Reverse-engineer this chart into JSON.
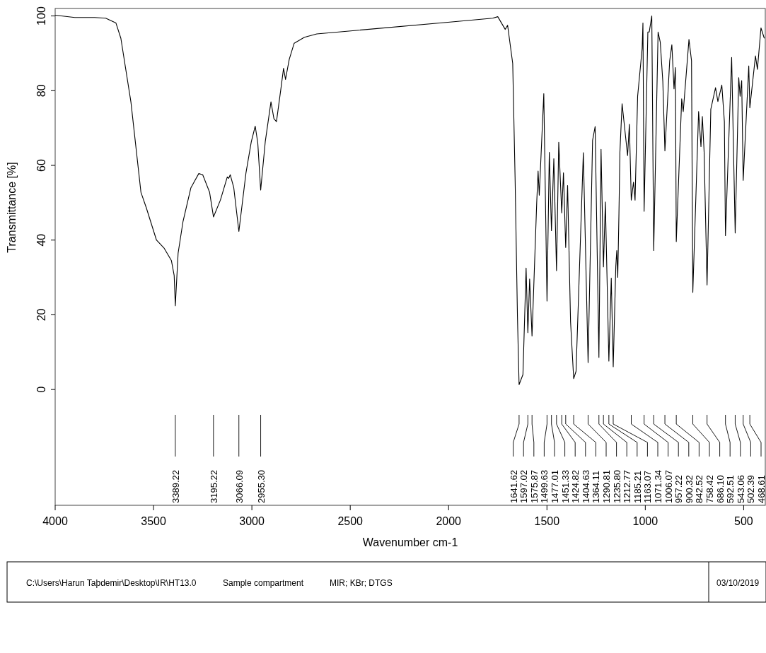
{
  "chart_data": {
    "type": "line",
    "xlabel": "Wavenumber cm-1",
    "ylabel": "Transmittance [%]",
    "xlim": [
      4000,
      390
    ],
    "xticks": [
      4000,
      3500,
      3000,
      2500,
      2000,
      1500,
      1000,
      500
    ],
    "ylim": [
      -31,
      102
    ],
    "yticks": [
      0,
      20,
      40,
      60,
      80,
      100
    ],
    "series": [
      {
        "color": "#000000",
        "x": [
          4000,
          3900,
          3800,
          3743,
          3691,
          3666,
          3615,
          3564,
          3537,
          3485,
          3447,
          3409,
          3395,
          3389.22,
          3375,
          3350,
          3310,
          3270,
          3250,
          3215,
          3195.22,
          3160,
          3125,
          3118,
          3110,
          3092,
          3066.09,
          3030,
          3003,
          2983,
          2970,
          2955.3,
          2932,
          2903,
          2888,
          2875,
          2852,
          2839,
          2829,
          2810,
          2785,
          2733,
          2670,
          1983,
          1776,
          1750,
          1712,
          1700,
          1674,
          1662,
          1650,
          1641.62,
          1622,
          1606,
          1597.02,
          1588,
          1575.87,
          1552,
          1545,
          1539,
          1516,
          1499.63,
          1488,
          1477.01,
          1465,
          1451.33,
          1440,
          1424.82,
          1416,
          1404.63,
          1395,
          1380,
          1364.11,
          1352,
          1315,
          1290.81,
          1268,
          1255,
          1235.8,
          1225,
          1212.77,
          1203,
          1185.21,
          1173,
          1163.07,
          1150,
          1145,
          1140,
          1134,
          1129,
          1118,
          1090,
          1081,
          1071.34,
          1060,
          1052,
          1039,
          1016,
          1012,
          1006.07,
          987,
          980,
          967,
          957.22,
          935,
          924,
          911,
          900.32,
          876,
          865,
          854,
          847,
          842.52,
          815,
          807,
          778,
          765,
          758.42,
          729,
          717,
          710,
          701,
          686.1,
          667,
          643,
          631,
          611,
          598,
          592.51,
          561,
          543.06,
          525,
          518,
          510,
          502.39,
          474,
          468.61,
          440,
          430,
          412,
          395
        ],
        "values": [
          100.2,
          99.6,
          99.6,
          99.4,
          98.1,
          94,
          77,
          52.8,
          48.7,
          40,
          37.9,
          34.5,
          30.5,
          22.4,
          36.5,
          45,
          54,
          57.8,
          57.5,
          52.8,
          46.2,
          50.7,
          56.9,
          56.5,
          57.5,
          54,
          42.3,
          58,
          66.3,
          70.5,
          66,
          53.4,
          66.3,
          77,
          72.5,
          71.7,
          80.7,
          86,
          83,
          88.4,
          92.7,
          94.3,
          95.2,
          98.4,
          99.4,
          99.8,
          96.4,
          97.5,
          87.3,
          56.8,
          19.7,
          1.3,
          4,
          32.5,
          15.2,
          29.6,
          14.3,
          50,
          58.5,
          52,
          79.2,
          23.7,
          63.5,
          42.5,
          61.8,
          31.8,
          66.2,
          47.3,
          58,
          38,
          54.6,
          18.2,
          2.9,
          4.9,
          63.4,
          7.2,
          66.7,
          70.4,
          8.6,
          64.3,
          32.8,
          50.2,
          7.6,
          29.8,
          6.1,
          33,
          37.2,
          30,
          47,
          63.6,
          76.5,
          62.6,
          71,
          50.7,
          55.5,
          50.7,
          78.5,
          91.3,
          98.1,
          47.7,
          95.7,
          95.7,
          100,
          37.2,
          95.7,
          93,
          82.5,
          63.9,
          88,
          92.3,
          80.5,
          86.2,
          39.6,
          77.8,
          74.4,
          93.7,
          88,
          26,
          74.4,
          65,
          73.1,
          63.6,
          28,
          75,
          80.8,
          77.1,
          81.5,
          71.7,
          41.2,
          88.9,
          41.9,
          83.5,
          78.5,
          82.7,
          56,
          86.6,
          75.4,
          89.3,
          85.7,
          96.8,
          94
        ]
      }
    ],
    "annotations": [
      "3389.22",
      "3195.22",
      "3066.09",
      "2955.30",
      "1641.62",
      "1597.02",
      "1575.87",
      "1499.63",
      "1477.01",
      "1451.33",
      "1424.82",
      "1404.63",
      "1364.11",
      "1290.81",
      "1235.80",
      "1212.77",
      "1185.21",
      "1163.07",
      "1071.34",
      "1006.07",
      "957.22",
      "900.32",
      "842.52",
      "758.42",
      "686.10",
      "592.51",
      "543.06",
      "502.39",
      "468.61",
      "C:\\Users\\Harun Taþdemir\\Desktop\\IR\\HT13.0",
      "Sample compartment",
      "MIR; KBr; DTGS",
      "03/10/2019"
    ]
  }
}
